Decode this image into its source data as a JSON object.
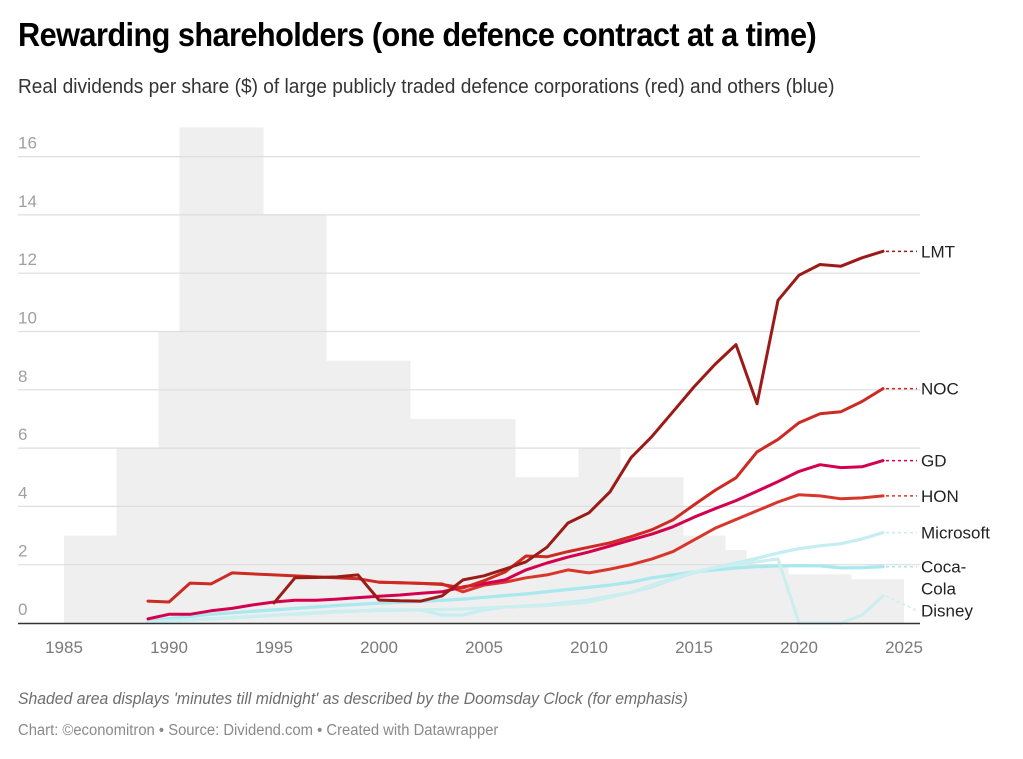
{
  "title": "Rewarding shareholders (one defence contract at a time)",
  "subtitle": "Real dividends per share ($) of large publicly traded defence corporations (red) and others (blue)",
  "note": "Shaded area displays 'minutes till midnight' as described by the Doomsday Clock (for emphasis)",
  "credit": "Chart: ©economitron • Source: Dividend.com • Created with Datawrapper",
  "chart_data": {
    "type": "line",
    "title": "Rewarding shareholders (one defence contract at a time)",
    "subtitle": "Real dividends per share ($) of large publicly traded defence corporations (red) and others (blue)",
    "xlabel": "",
    "ylabel": "Real dividends per share ($)",
    "xlim": [
      1983,
      2025
    ],
    "ylim": [
      0,
      17
    ],
    "grid": true,
    "legend": "direct-labels-right",
    "x_ticks": [
      "1985",
      "1990",
      "1995",
      "2000",
      "2005",
      "2010",
      "2015",
      "2020",
      "2025"
    ],
    "y_ticks": [
      "0",
      "2",
      "4",
      "6",
      "8",
      "10",
      "12",
      "14",
      "16"
    ],
    "background_area": {
      "name": "Doomsday Clock minutes till midnight",
      "color": "#efefef",
      "steps": [
        {
          "start": 1985.0,
          "end": 1987.5,
          "value": 3
        },
        {
          "start": 1987.5,
          "end": 1989.5,
          "value": 6
        },
        {
          "start": 1989.5,
          "end": 1990.5,
          "value": 10
        },
        {
          "start": 1990.5,
          "end": 1994.5,
          "value": 17
        },
        {
          "start": 1994.5,
          "end": 1997.5,
          "value": 14
        },
        {
          "start": 1997.5,
          "end": 2001.5,
          "value": 9
        },
        {
          "start": 2001.5,
          "end": 2006.5,
          "value": 7
        },
        {
          "start": 2006.5,
          "end": 2009.5,
          "value": 5
        },
        {
          "start": 2009.5,
          "end": 2011.5,
          "value": 6
        },
        {
          "start": 2011.5,
          "end": 2014.5,
          "value": 5
        },
        {
          "start": 2014.5,
          "end": 2016.5,
          "value": 3
        },
        {
          "start": 2016.5,
          "end": 2017.5,
          "value": 2.5
        },
        {
          "start": 2017.5,
          "end": 2019.5,
          "value": 2
        },
        {
          "start": 2019.5,
          "end": 2022.5,
          "value": 1.67
        },
        {
          "start": 2022.5,
          "end": 2025.0,
          "value": 1.5
        }
      ]
    },
    "series": [
      {
        "name": "Coca-Cola",
        "label": "Coca-\nCola",
        "group": "others",
        "color": "#a8e8ef",
        "opacity": 1,
        "points": [
          [
            1989,
            0.05
          ],
          [
            1990,
            0.15
          ],
          [
            1992,
            0.3
          ],
          [
            1994,
            0.4
          ],
          [
            1996,
            0.5
          ],
          [
            1998,
            0.6
          ],
          [
            2000,
            0.68
          ],
          [
            2002,
            0.74
          ],
          [
            2004,
            0.82
          ],
          [
            2005,
            0.88
          ],
          [
            2007,
            1.0
          ],
          [
            2009,
            1.15
          ],
          [
            2011,
            1.3
          ],
          [
            2012,
            1.4
          ],
          [
            2013,
            1.55
          ],
          [
            2015,
            1.75
          ],
          [
            2017,
            1.89
          ],
          [
            2018,
            1.93
          ],
          [
            2019,
            1.96
          ],
          [
            2020,
            1.97
          ],
          [
            2021,
            1.96
          ],
          [
            2022,
            1.89
          ],
          [
            2023,
            1.9
          ],
          [
            2024,
            1.93
          ]
        ]
      },
      {
        "name": "Microsoft",
        "label": "Microsoft",
        "group": "others",
        "color": "#c4eef2",
        "opacity": 1,
        "points": [
          [
            1989,
            0.03
          ],
          [
            1991,
            0.1
          ],
          [
            1994,
            0.22
          ],
          [
            1998,
            0.4
          ],
          [
            2002,
            0.45
          ],
          [
            2003,
            0.27
          ],
          [
            2004,
            0.27
          ],
          [
            2005,
            0.45
          ],
          [
            2006,
            0.55
          ],
          [
            2008,
            0.62
          ],
          [
            2010,
            0.79
          ],
          [
            2012,
            1.05
          ],
          [
            2013,
            1.24
          ],
          [
            2014,
            1.5
          ],
          [
            2015,
            1.72
          ],
          [
            2016,
            1.9
          ],
          [
            2017,
            2.06
          ],
          [
            2018,
            2.22
          ],
          [
            2019,
            2.4
          ],
          [
            2020,
            2.55
          ],
          [
            2021,
            2.65
          ],
          [
            2022,
            2.72
          ],
          [
            2023,
            2.88
          ],
          [
            2024,
            3.1
          ]
        ]
      },
      {
        "name": "Disney",
        "label": "Disney",
        "group": "others",
        "color": "#cdeeef",
        "opacity": 1,
        "points": [
          [
            1989,
            0.02
          ],
          [
            1992,
            0.15
          ],
          [
            1996,
            0.3
          ],
          [
            2000,
            0.45
          ],
          [
            2002,
            0.45
          ],
          [
            2004,
            0.48
          ],
          [
            2006,
            0.55
          ],
          [
            2008,
            0.6
          ],
          [
            2010,
            0.72
          ],
          [
            2012,
            1.05
          ],
          [
            2014,
            1.55
          ],
          [
            2015,
            1.75
          ],
          [
            2016,
            1.9
          ],
          [
            2017,
            2.0
          ],
          [
            2018,
            2.1
          ],
          [
            2019,
            2.2
          ],
          [
            2020,
            0.0
          ],
          [
            2021,
            0.0
          ],
          [
            2022,
            0.0
          ],
          [
            2023,
            0.27
          ],
          [
            2024,
            0.93
          ]
        ]
      },
      {
        "name": "HON",
        "label": "HON",
        "group": "defence",
        "color": "#d9362b",
        "opacity": 1,
        "points": [
          [
            2000,
            1.4
          ],
          [
            2001,
            1.38
          ],
          [
            2002,
            1.36
          ],
          [
            2003,
            1.34
          ],
          [
            2004,
            1.07
          ],
          [
            2005,
            1.3
          ],
          [
            2006,
            1.4
          ],
          [
            2007,
            1.55
          ],
          [
            2008,
            1.65
          ],
          [
            2009,
            1.82
          ],
          [
            2010,
            1.72
          ],
          [
            2011,
            1.85
          ],
          [
            2012,
            2.0
          ],
          [
            2013,
            2.2
          ],
          [
            2014,
            2.45
          ],
          [
            2015,
            2.85
          ],
          [
            2016,
            3.25
          ],
          [
            2017,
            3.55
          ],
          [
            2018,
            3.85
          ],
          [
            2019,
            4.15
          ],
          [
            2020,
            4.4
          ],
          [
            2021,
            4.36
          ],
          [
            2022,
            4.26
          ],
          [
            2023,
            4.29
          ],
          [
            2024,
            4.36
          ]
        ]
      },
      {
        "name": "GD",
        "label": "GD",
        "group": "defence",
        "color": "#d4004f",
        "opacity": 1,
        "points": [
          [
            1989,
            0.14
          ],
          [
            1990,
            0.3
          ],
          [
            1991,
            0.3
          ],
          [
            1992,
            0.42
          ],
          [
            1993,
            0.5
          ],
          [
            1994,
            0.62
          ],
          [
            1995,
            0.72
          ],
          [
            1996,
            0.78
          ],
          [
            1997,
            0.78
          ],
          [
            1998,
            0.82
          ],
          [
            1999,
            0.87
          ],
          [
            2000,
            0.92
          ],
          [
            2001,
            0.96
          ],
          [
            2002,
            1.02
          ],
          [
            2003,
            1.07
          ],
          [
            2004,
            1.24
          ],
          [
            2005,
            1.35
          ],
          [
            2006,
            1.48
          ],
          [
            2007,
            1.82
          ],
          [
            2008,
            2.06
          ],
          [
            2009,
            2.26
          ],
          [
            2010,
            2.44
          ],
          [
            2011,
            2.64
          ],
          [
            2012,
            2.85
          ],
          [
            2013,
            3.05
          ],
          [
            2014,
            3.3
          ],
          [
            2015,
            3.63
          ],
          [
            2016,
            3.92
          ],
          [
            2017,
            4.2
          ],
          [
            2018,
            4.52
          ],
          [
            2019,
            4.85
          ],
          [
            2020,
            5.2
          ],
          [
            2021,
            5.43
          ],
          [
            2022,
            5.33
          ],
          [
            2023,
            5.36
          ],
          [
            2024,
            5.57
          ]
        ]
      },
      {
        "name": "NOC",
        "label": "NOC",
        "group": "defence",
        "color": "#cc2a22",
        "opacity": 1,
        "points": [
          [
            1989,
            0.75
          ],
          [
            1990,
            0.72
          ],
          [
            1991,
            1.37
          ],
          [
            1992,
            1.34
          ],
          [
            1993,
            1.72
          ],
          [
            1995,
            1.65
          ],
          [
            1997,
            1.58
          ],
          [
            1999,
            1.52
          ],
          [
            2000,
            1.4
          ],
          [
            2001,
            1.38
          ],
          [
            2002,
            1.36
          ],
          [
            2003,
            1.32
          ],
          [
            2004,
            1.2
          ],
          [
            2005,
            1.45
          ],
          [
            2006,
            1.75
          ],
          [
            2007,
            2.3
          ],
          [
            2008,
            2.27
          ],
          [
            2009,
            2.45
          ],
          [
            2010,
            2.6
          ],
          [
            2011,
            2.75
          ],
          [
            2012,
            2.96
          ],
          [
            2013,
            3.2
          ],
          [
            2014,
            3.54
          ],
          [
            2015,
            4.05
          ],
          [
            2016,
            4.55
          ],
          [
            2017,
            4.98
          ],
          [
            2018,
            5.87
          ],
          [
            2019,
            6.3
          ],
          [
            2020,
            6.87
          ],
          [
            2021,
            7.18
          ],
          [
            2022,
            7.25
          ],
          [
            2023,
            7.6
          ],
          [
            2024,
            8.04
          ]
        ]
      },
      {
        "name": "LMT",
        "label": "LMT",
        "group": "defence",
        "color": "#9b1c17",
        "opacity": 1,
        "points": [
          [
            1995,
            0.69
          ],
          [
            1996,
            1.55
          ],
          [
            1997,
            1.56
          ],
          [
            1998,
            1.58
          ],
          [
            1999,
            1.65
          ],
          [
            2000,
            0.79
          ],
          [
            2001,
            0.76
          ],
          [
            2002,
            0.75
          ],
          [
            2003,
            0.93
          ],
          [
            2004,
            1.48
          ],
          [
            2005,
            1.62
          ],
          [
            2006,
            1.85
          ],
          [
            2007,
            2.1
          ],
          [
            2008,
            2.6
          ],
          [
            2009,
            3.43
          ],
          [
            2010,
            3.78
          ],
          [
            2011,
            4.5
          ],
          [
            2012,
            5.67
          ],
          [
            2013,
            6.4
          ],
          [
            2014,
            7.25
          ],
          [
            2015,
            8.1
          ],
          [
            2016,
            8.87
          ],
          [
            2017,
            9.55
          ],
          [
            2018,
            7.52
          ],
          [
            2019,
            11.07
          ],
          [
            2020,
            11.93
          ],
          [
            2021,
            12.3
          ],
          [
            2022,
            12.24
          ],
          [
            2023,
            12.53
          ],
          [
            2024,
            12.75
          ]
        ]
      }
    ]
  }
}
